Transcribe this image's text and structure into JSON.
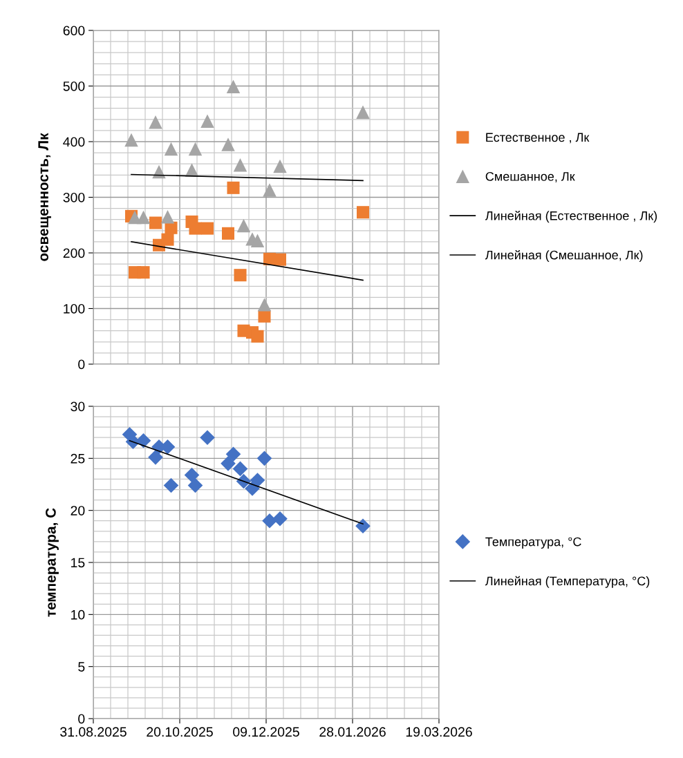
{
  "chart_data": [
    {
      "type": "scatter",
      "ylabel": "освещенность, Лк",
      "tick_labels": "y",
      "grid": true,
      "legend": "right",
      "xlim": [
        "2025-08-31",
        "2026-03-19"
      ],
      "xticks": [
        {
          "value": "2025-08-31",
          "label": null
        },
        {
          "value": "2025-10-20",
          "label": null
        },
        {
          "value": "2025-12-09",
          "label": null
        },
        {
          "value": "2026-01-28",
          "label": null
        },
        {
          "value": "2026-03-19",
          "label": null
        }
      ],
      "ylim": [
        0,
        600
      ],
      "yticks": [
        0,
        100,
        200,
        300,
        400,
        500,
        600
      ],
      "series": [
        {
          "name": "Естественное , Лк",
          "color": "#ed7d31",
          "marker": "square",
          "x": [
            "2025-09-22",
            "2025-09-24",
            "2025-09-29",
            "2025-10-06",
            "2025-10-08",
            "2025-10-13",
            "2025-10-15",
            "2025-10-27",
            "2025-10-29",
            "2025-11-05",
            "2025-11-17",
            "2025-11-20",
            "2025-11-24",
            "2025-11-26",
            "2025-12-01",
            "2025-12-04",
            "2025-12-08",
            "2025-12-11",
            "2025-12-17",
            "2026-02-03"
          ],
          "values": [
            266,
            165,
            165,
            254,
            214,
            224,
            245,
            256,
            244,
            244,
            235,
            317,
            160,
            60,
            57,
            50,
            86,
            189,
            188,
            273
          ]
        },
        {
          "name": "Смешанное, Лк",
          "color": "#a5a5a5",
          "marker": "triangle",
          "x": [
            "2025-09-22",
            "2025-09-24",
            "2025-09-29",
            "2025-10-06",
            "2025-10-08",
            "2025-10-13",
            "2025-10-15",
            "2025-10-27",
            "2025-10-29",
            "2025-11-05",
            "2025-11-17",
            "2025-11-20",
            "2025-11-24",
            "2025-11-26",
            "2025-12-01",
            "2025-12-04",
            "2025-12-08",
            "2025-12-11",
            "2025-12-17",
            "2026-02-03"
          ],
          "values": [
            403,
            264,
            264,
            435,
            346,
            265,
            387,
            349,
            387,
            437,
            395,
            499,
            358,
            249,
            225,
            222,
            107,
            313,
            356,
            453
          ]
        },
        {
          "name": "Линейная (Естественное , Лк)",
          "type": "line",
          "color": "#000000",
          "marker": "none",
          "line_style": "solid",
          "x": [
            "2025-09-22",
            "2026-02-03"
          ],
          "values": [
            220,
            151
          ]
        },
        {
          "name": "Линейная (Смешанное, Лк)",
          "type": "line",
          "color": "#000000",
          "marker": "none",
          "line_style": "solid",
          "x": [
            "2025-09-22",
            "2026-02-03"
          ],
          "values": [
            341,
            330
          ]
        }
      ]
    },
    {
      "type": "scatter",
      "ylabel": "температура, С",
      "grid": true,
      "legend": "right",
      "xlim": [
        "2025-08-31",
        "2026-03-19"
      ],
      "xticks": [
        {
          "value": "2025-08-31",
          "label": "31.08.2025"
        },
        {
          "value": "2025-10-20",
          "label": "20.10.2025"
        },
        {
          "value": "2025-12-09",
          "label": "09.12.2025"
        },
        {
          "value": "2026-01-28",
          "label": "28.01.2026"
        },
        {
          "value": "2026-03-19",
          "label": "19.03.2026"
        }
      ],
      "ylim": [
        0,
        30
      ],
      "yticks": [
        0,
        5,
        10,
        15,
        20,
        25,
        30
      ],
      "series": [
        {
          "name": "Температура, °C",
          "color": "#4472c4",
          "marker": "diamond",
          "x": [
            "2025-09-21",
            "2025-09-23",
            "2025-09-29",
            "2025-10-06",
            "2025-10-08",
            "2025-10-13",
            "2025-10-15",
            "2025-10-27",
            "2025-10-29",
            "2025-11-05",
            "2025-11-17",
            "2025-11-20",
            "2025-11-24",
            "2025-11-26",
            "2025-12-01",
            "2025-12-04",
            "2025-12-08",
            "2025-12-11",
            "2025-12-17",
            "2026-02-03"
          ],
          "values": [
            27.3,
            26.6,
            26.7,
            25.1,
            26.1,
            26.1,
            22.4,
            23.4,
            22.4,
            27.0,
            24.5,
            25.4,
            24.0,
            22.8,
            22.1,
            22.9,
            25.0,
            19.0,
            19.2,
            18.5
          ]
        },
        {
          "name": "Линейная (Температура, °C)",
          "type": "line",
          "color": "#000000",
          "marker": "none",
          "line_style": "solid",
          "x": [
            "2025-09-21",
            "2026-02-03"
          ],
          "values": [
            26.7,
            18.7
          ]
        }
      ]
    }
  ]
}
